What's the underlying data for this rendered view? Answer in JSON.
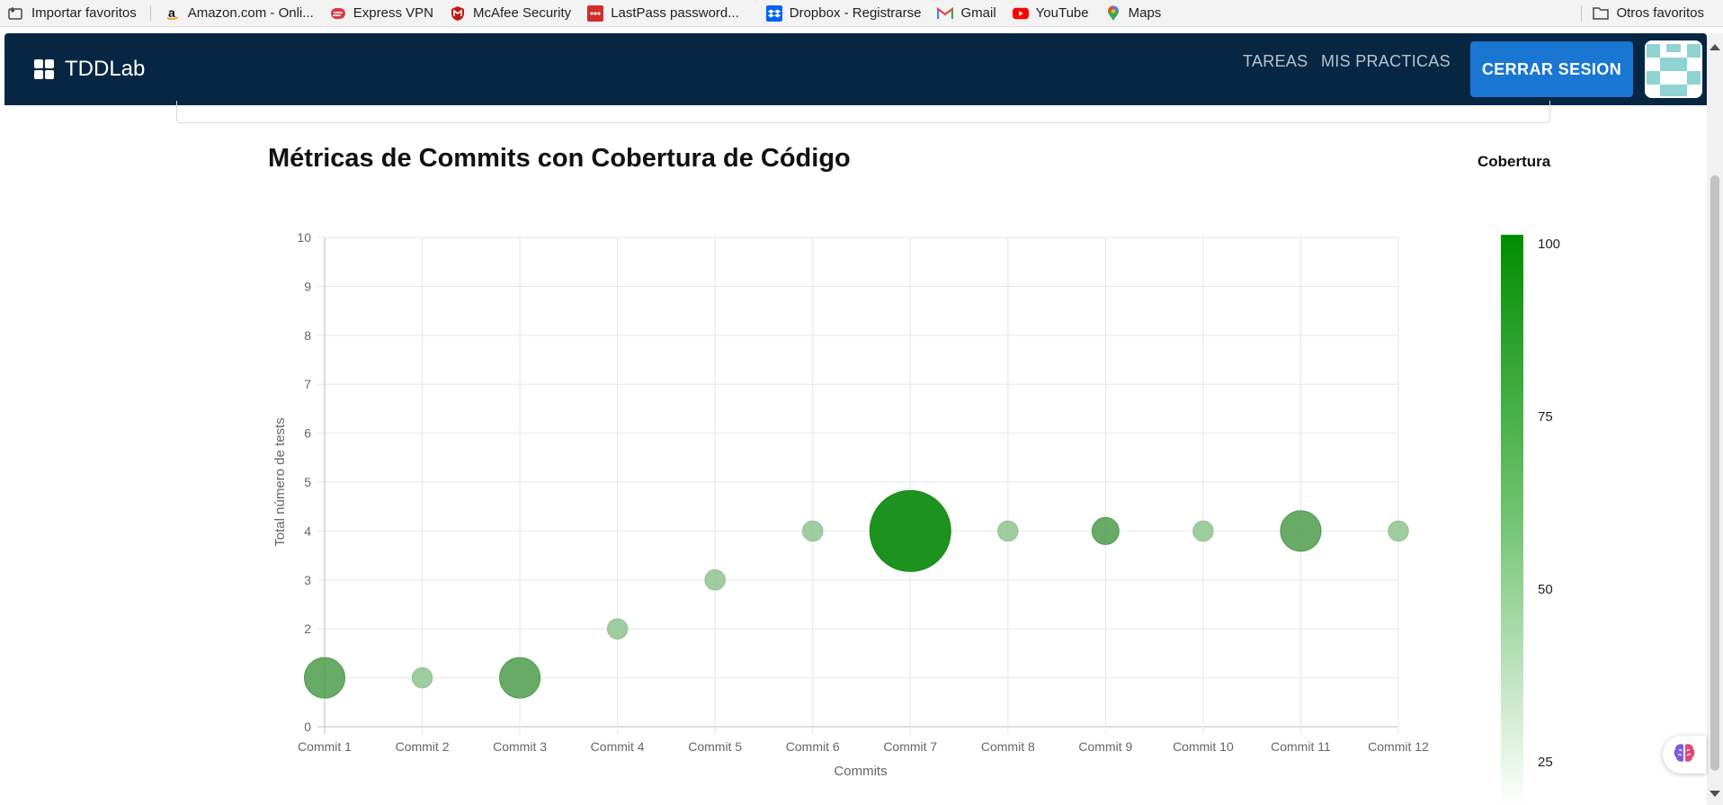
{
  "bookmarks": {
    "items": [
      {
        "label": "Importar favoritos",
        "icon": "import-bookmarks-icon"
      },
      {
        "label": "Amazon.com - Onli...",
        "icon": "amazon-icon"
      },
      {
        "label": "Express VPN",
        "icon": "expressvpn-icon"
      },
      {
        "label": "McAfee Security",
        "icon": "mcafee-icon"
      },
      {
        "label": "LastPass password...",
        "icon": "lastpass-icon"
      },
      {
        "label": "Dropbox - Registrarse",
        "icon": "dropbox-icon"
      },
      {
        "label": "Gmail",
        "icon": "gmail-icon"
      },
      {
        "label": "YouTube",
        "icon": "youtube-icon"
      },
      {
        "label": "Maps",
        "icon": "maps-icon"
      }
    ],
    "other": {
      "label": "Otros favoritos",
      "icon": "folder-icon"
    }
  },
  "navbar": {
    "brand": "TDDLab",
    "links": [
      "TAREAS",
      "MIS PRACTICAS"
    ],
    "logout_label": "CERRAR SESION"
  },
  "chart_data": {
    "type": "scatter",
    "title": "Métricas de Commits con Cobertura de Código",
    "xlabel": "Commits",
    "ylabel": "Total número de tests",
    "categories": [
      "Commit 1",
      "Commit 2",
      "Commit 3",
      "Commit 4",
      "Commit 5",
      "Commit 6",
      "Commit 7",
      "Commit 8",
      "Commit 9",
      "Commit 10",
      "Commit 11",
      "Commit 12"
    ],
    "values": [
      1,
      1,
      1,
      2,
      3,
      4,
      4,
      4,
      4,
      4,
      4,
      4
    ],
    "coverage": [
      85,
      55,
      85,
      55,
      55,
      55,
      100,
      55,
      85,
      55,
      85,
      55
    ],
    "bubble_size": [
      3,
      1.5,
      3,
      1.5,
      1.5,
      1.5,
      6,
      1.5,
      2,
      1.5,
      3,
      1.5
    ],
    "ylim": [
      0,
      10
    ],
    "yticks": [
      0,
      1,
      2,
      3,
      4,
      5,
      6,
      7,
      8,
      9,
      10
    ],
    "ytick_labels": [
      "0",
      "",
      "2",
      "3",
      "4",
      "5",
      "6",
      "7",
      "8",
      "9",
      "10"
    ],
    "grid": true,
    "colorbar": {
      "title": "Cobertura",
      "ticks": [
        100,
        75,
        50,
        25
      ],
      "range": [
        0,
        100
      ],
      "colors": {
        "high": "#008f00",
        "mid": "#72c472",
        "low": "#ffffff"
      }
    }
  },
  "colors": {
    "navbar": "#062643",
    "logout_button": "#1976d2",
    "point_high": "#128c12",
    "point_mid": "#4c9c4c",
    "point_low": "#8ec48e"
  }
}
